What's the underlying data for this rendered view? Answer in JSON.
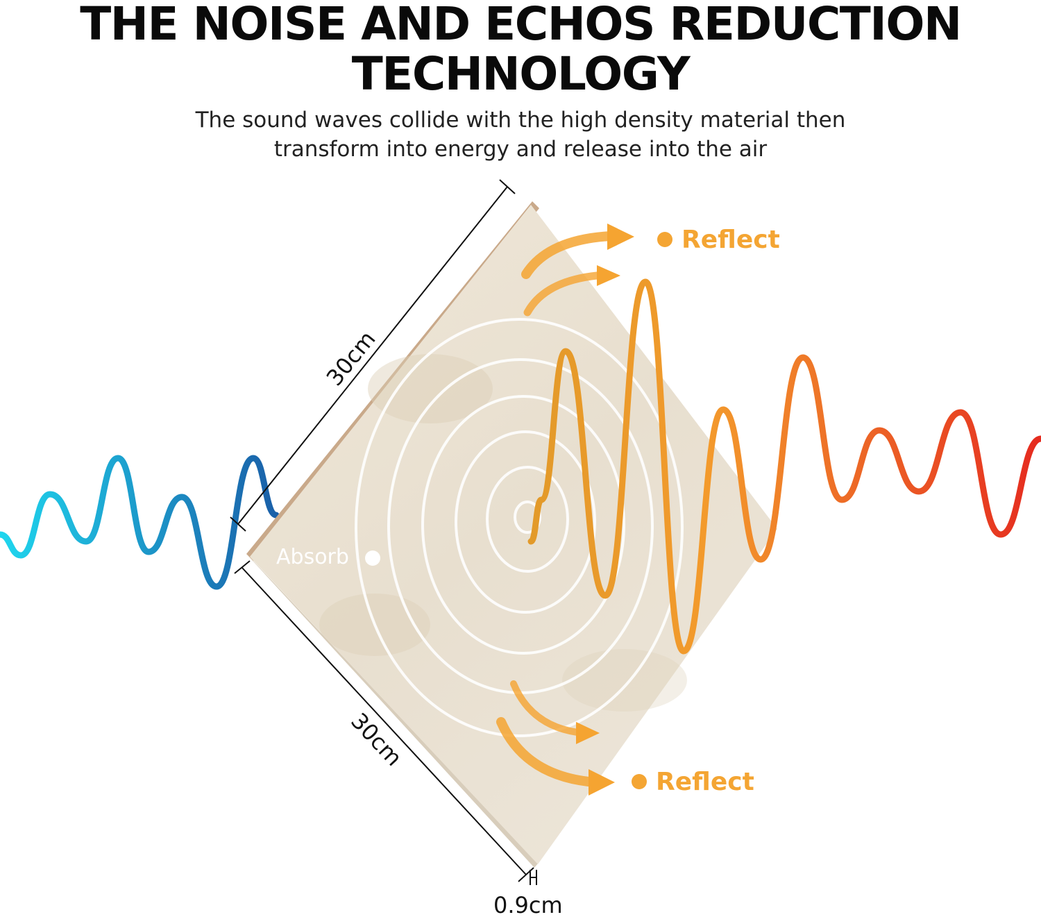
{
  "header": {
    "title_line1": "THE NOISE AND ECHOS REDUCTION",
    "title_line2": "TECHNOLOGY",
    "subtitle_line1": "The sound waves collide with the high density material then",
    "subtitle_line2": "transform into energy and release into the air"
  },
  "labels": {
    "reflect_top": "Reflect",
    "reflect_bottom": "Reflect",
    "absorb": "Absorb",
    "dim_upper": "30cm",
    "dim_lower": "30cm",
    "dim_thickness": "0.9cm"
  },
  "colors": {
    "incoming_wave_start": "#1fd6ee",
    "incoming_wave_end": "#1a5fa8",
    "outgoing_wave_start": "#f39a2c",
    "outgoing_wave_end": "#e52b1f",
    "reflect_accent": "#f4a533",
    "panel": "#ece4d6"
  }
}
